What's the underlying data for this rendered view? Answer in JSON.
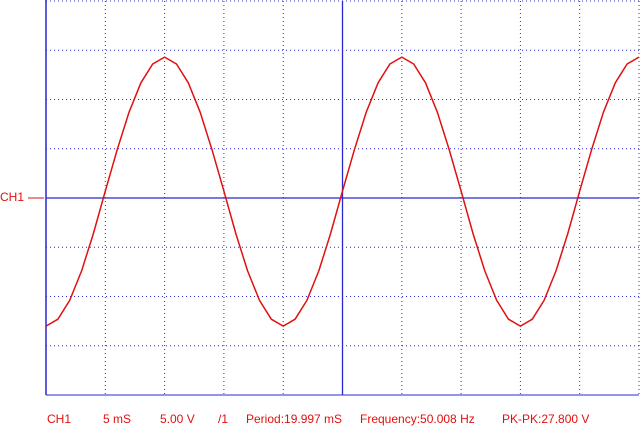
{
  "chart_data": {
    "type": "line",
    "channel_label": "CH1",
    "status": [
      "CH1",
      "5 mS",
      "5.00 V",
      "/1",
      "Period:19.997 mS",
      "Frequency:50.008 Hz",
      "PK-PK:27.800 V"
    ],
    "x": [
      0,
      1,
      2,
      3,
      4,
      5,
      6,
      7,
      8,
      9,
      10,
      11,
      12,
      13,
      14,
      15,
      16,
      17,
      18,
      19,
      20,
      21,
      22,
      23,
      24,
      25,
      26,
      27,
      28,
      29,
      30,
      31,
      32,
      33,
      34,
      35,
      36,
      37,
      38,
      39,
      40,
      41,
      42,
      43,
      44,
      45,
      46,
      47,
      48,
      49,
      50
    ],
    "series": [
      {
        "name": "CH1",
        "color": "#e01010",
        "values": [
          -13.0,
          -12.3,
          -10.4,
          -7.4,
          -3.6,
          0.7,
          4.9,
          8.7,
          11.7,
          13.6,
          14.3,
          13.6,
          11.7,
          8.7,
          4.9,
          0.7,
          -3.6,
          -7.4,
          -10.4,
          -12.3,
          -13.0,
          -12.3,
          -10.4,
          -7.4,
          -3.6,
          0.7,
          4.9,
          8.7,
          11.7,
          13.6,
          14.3,
          13.6,
          11.7,
          8.7,
          4.9,
          0.7,
          -3.6,
          -7.4,
          -10.4,
          -12.3,
          -13.0,
          -12.3,
          -10.4,
          -7.4,
          -3.6,
          0.7,
          4.9,
          8.7,
          11.7,
          13.6,
          14.3
        ]
      }
    ],
    "xlim": [
      0,
      50
    ],
    "xticks": [
      0,
      5,
      10,
      15,
      20,
      25,
      30,
      35,
      40,
      45,
      50
    ],
    "ylim": [
      -20,
      20
    ],
    "yticks": [
      -20,
      -15,
      -10,
      -5,
      0,
      5,
      10,
      15,
      20
    ],
    "grid": true,
    "grid_color": "#2828d0",
    "text_color": "#e01010"
  }
}
